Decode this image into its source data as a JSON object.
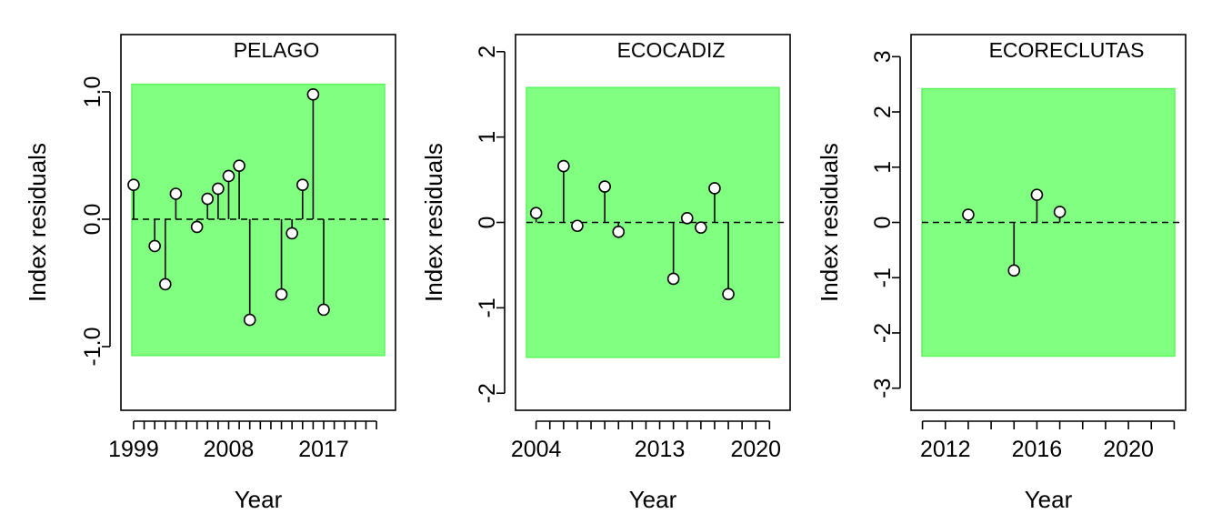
{
  "chart_data": [
    {
      "type": "scatter",
      "subtype": "lollipop-residuals",
      "title": "PELAGO",
      "xlabel": "Year",
      "ylabel": "Index residuals",
      "xlim": [
        1997.8,
        2023.8
      ],
      "ylim": [
        -1.5,
        1.45
      ],
      "xticks": [
        1999,
        2000,
        2001,
        2002,
        2003,
        2004,
        2005,
        2006,
        2007,
        2008,
        2009,
        2010,
        2011,
        2012,
        2013,
        2014,
        2015,
        2016,
        2017,
        2018,
        2019,
        2020,
        2021,
        2022
      ],
      "xtick_labels": [
        {
          "value": 1999,
          "label": "1999"
        },
        {
          "value": 2008,
          "label": "2008"
        },
        {
          "value": 2017,
          "label": "2017"
        }
      ],
      "yticks": [
        {
          "value": 1.0,
          "label": "1.0"
        },
        {
          "value": 0.0,
          "label": "0.0"
        },
        {
          "value": -1.0,
          "label": "-1.0"
        }
      ],
      "band": [
        -1.07,
        1.06
      ],
      "band_color": "#80ff80",
      "band_edge_color": "#5cf55c",
      "reference_line": 0,
      "x": [
        1999,
        2001,
        2002,
        2003,
        2005,
        2006,
        2007,
        2008,
        2009,
        2010,
        2013,
        2014,
        2015,
        2016,
        2017
      ],
      "y": [
        0.27,
        -0.21,
        -0.51,
        0.2,
        -0.06,
        0.16,
        0.24,
        0.34,
        0.42,
        -0.79,
        -0.59,
        -0.11,
        0.27,
        0.98,
        -0.71
      ]
    },
    {
      "type": "scatter",
      "subtype": "lollipop-residuals",
      "title": "ECOCADIZ",
      "xlabel": "Year",
      "ylabel": "Index residuals",
      "xlim": [
        2002.5,
        2022.5
      ],
      "ylim": [
        -2.2,
        2.2
      ],
      "xticks": [
        2004,
        2005,
        2006,
        2007,
        2008,
        2009,
        2010,
        2011,
        2012,
        2013,
        2014,
        2015,
        2016,
        2017,
        2018,
        2019,
        2020,
        2021
      ],
      "xtick_labels": [
        {
          "value": 2004,
          "label": "2004"
        },
        {
          "value": 2013,
          "label": "2013"
        },
        {
          "value": 2020,
          "label": "2020"
        }
      ],
      "yticks": [
        {
          "value": 2,
          "label": "2"
        },
        {
          "value": 1,
          "label": "1"
        },
        {
          "value": 0,
          "label": "0"
        },
        {
          "value": -1,
          "label": "-1"
        },
        {
          "value": -2,
          "label": "-2"
        }
      ],
      "band": [
        -1.58,
        1.58
      ],
      "band_color": "#80ff80",
      "band_edge_color": "#5cf55c",
      "reference_line": 0,
      "x": [
        2004,
        2006,
        2007,
        2009,
        2010,
        2014,
        2015,
        2016,
        2017,
        2018
      ],
      "y": [
        0.11,
        0.66,
        -0.04,
        0.42,
        -0.11,
        -0.66,
        0.05,
        -0.06,
        0.4,
        -0.84
      ]
    },
    {
      "type": "scatter",
      "subtype": "lollipop-residuals",
      "title": "ECORECLUTAS",
      "xlabel": "Year",
      "ylabel": "Index residuals",
      "xlim": [
        2010.5,
        2022.5
      ],
      "ylim": [
        -3.4,
        3.4
      ],
      "xticks": [
        2011,
        2012,
        2013,
        2014,
        2015,
        2016,
        2017,
        2018,
        2019,
        2020,
        2021,
        2022
      ],
      "xtick_labels": [
        {
          "value": 2012,
          "label": "2012"
        },
        {
          "value": 2016,
          "label": "2016"
        },
        {
          "value": 2020,
          "label": "2020"
        }
      ],
      "yticks": [
        {
          "value": 3,
          "label": "3"
        },
        {
          "value": 2,
          "label": "2"
        },
        {
          "value": 1,
          "label": "1"
        },
        {
          "value": 0,
          "label": "0"
        },
        {
          "value": -1,
          "label": "-1"
        },
        {
          "value": -2,
          "label": "-2"
        },
        {
          "value": -3,
          "label": "-3"
        }
      ],
      "band": [
        -2.42,
        2.42
      ],
      "band_color": "#80ff80",
      "band_edge_color": "#5cf55c",
      "reference_line": 0,
      "x": [
        2013,
        2015,
        2016,
        2017
      ],
      "y": [
        0.14,
        -0.87,
        0.5,
        0.19
      ]
    }
  ]
}
